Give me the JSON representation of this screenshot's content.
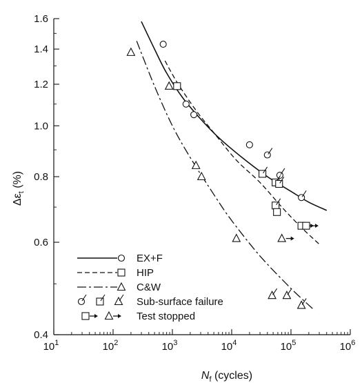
{
  "chart_data": {
    "type": "scatter",
    "title": "",
    "xlabel": {
      "italic": "N",
      "sub": "f",
      "rest": " (cycles)"
    },
    "ylabel": {
      "prefix": "Δε",
      "sub": "t",
      "rest": " (%)"
    },
    "x_scale": "log",
    "y_scale": "log",
    "xlim": [
      10,
      1000000
    ],
    "ylim": [
      0.4,
      1.6
    ],
    "x_ticks": [
      {
        "value": 10,
        "base": "10",
        "exp": "1"
      },
      {
        "value": 100,
        "base": "10",
        "exp": "2"
      },
      {
        "value": 1000,
        "base": "10",
        "exp": "3"
      },
      {
        "value": 10000,
        "base": "10",
        "exp": "4"
      },
      {
        "value": 100000,
        "base": "10",
        "exp": "5"
      },
      {
        "value": 1000000,
        "base": "10",
        "exp": "6"
      }
    ],
    "y_ticks": [
      {
        "value": 0.4,
        "label": "0.4"
      },
      {
        "value": 0.6,
        "label": "0.6"
      },
      {
        "value": 0.8,
        "label": "0.8"
      },
      {
        "value": 1.0,
        "label": "1.0"
      },
      {
        "value": 1.2,
        "label": "1.2"
      },
      {
        "value": 1.4,
        "label": "1.4"
      },
      {
        "value": 1.6,
        "label": "1.6"
      }
    ],
    "grid": false,
    "legend_position": "bottom-left",
    "series": [
      {
        "name": "EX+F",
        "marker": "circle",
        "line": "solid",
        "fit": [
          [
            300,
            1.58
          ],
          [
            500,
            1.4
          ],
          [
            800,
            1.26
          ],
          [
            1500,
            1.13
          ],
          [
            3000,
            1.03
          ],
          [
            6000,
            0.95
          ],
          [
            15000,
            0.87
          ],
          [
            40000,
            0.8
          ],
          [
            100000,
            0.75
          ],
          [
            200000,
            0.715
          ],
          [
            400000,
            0.69
          ]
        ],
        "points": [
          {
            "x": 700,
            "y": 1.43,
            "mod": "none"
          },
          {
            "x": 1700,
            "y": 1.1,
            "mod": "none"
          },
          {
            "x": 2300,
            "y": 1.05,
            "mod": "none"
          },
          {
            "x": 20000,
            "y": 0.92,
            "mod": "none"
          },
          {
            "x": 40000,
            "y": 0.88,
            "mod": "subsurface"
          },
          {
            "x": 55000,
            "y": 0.78,
            "mod": "none"
          },
          {
            "x": 65000,
            "y": 0.805,
            "mod": "subsurface"
          },
          {
            "x": 150000,
            "y": 0.73,
            "mod": "subsurface"
          }
        ]
      },
      {
        "name": "HIP",
        "marker": "square",
        "line": "dashed",
        "fit": [
          [
            750,
            1.33
          ],
          [
            1200,
            1.21
          ],
          [
            2500,
            1.07
          ],
          [
            5000,
            0.97
          ],
          [
            12000,
            0.86
          ],
          [
            30000,
            0.78
          ],
          [
            70000,
            0.7
          ],
          [
            150000,
            0.64
          ],
          [
            300000,
            0.595
          ]
        ],
        "points": [
          {
            "x": 1200,
            "y": 1.19,
            "mod": "none"
          },
          {
            "x": 33000,
            "y": 0.81,
            "mod": "subsurface"
          },
          {
            "x": 55000,
            "y": 0.78,
            "mod": "subsurface"
          },
          {
            "x": 63000,
            "y": 0.775,
            "mod": "subsurface"
          },
          {
            "x": 55000,
            "y": 0.705,
            "mod": "subsurface"
          },
          {
            "x": 58000,
            "y": 0.685,
            "mod": "none"
          },
          {
            "x": 150000,
            "y": 0.645,
            "mod": "stopped"
          },
          {
            "x": 180000,
            "y": 0.645,
            "mod": "stopped"
          }
        ]
      },
      {
        "name": "C&W",
        "marker": "triangle",
        "line": "dash-dot",
        "fit": [
          [
            250,
            1.45
          ],
          [
            500,
            1.19
          ],
          [
            1000,
            1.0
          ],
          [
            2000,
            0.87
          ],
          [
            5000,
            0.74
          ],
          [
            10000,
            0.66
          ],
          [
            30000,
            0.565
          ],
          [
            100000,
            0.49
          ],
          [
            250000,
            0.445
          ]
        ],
        "points": [
          {
            "x": 200,
            "y": 1.38,
            "mod": "none"
          },
          {
            "x": 880,
            "y": 1.19,
            "mod": "none"
          },
          {
            "x": 2500,
            "y": 0.84,
            "mod": "none"
          },
          {
            "x": 3100,
            "y": 0.8,
            "mod": "none"
          },
          {
            "x": 12000,
            "y": 0.61,
            "mod": "none"
          },
          {
            "x": 48000,
            "y": 0.475,
            "mod": "subsurface"
          },
          {
            "x": 85000,
            "y": 0.475,
            "mod": "subsurface"
          },
          {
            "x": 70000,
            "y": 0.61,
            "mod": "stopped"
          },
          {
            "x": 150000,
            "y": 0.455,
            "mod": "subsurface"
          }
        ]
      }
    ],
    "legend_extra": [
      {
        "label": "Sub-surface failure",
        "markers": [
          "circle",
          "square",
          "triangle"
        ],
        "mod": "subsurface"
      },
      {
        "label": "Test stopped",
        "markers": [
          "square",
          "triangle"
        ],
        "mod": "stopped"
      }
    ]
  }
}
